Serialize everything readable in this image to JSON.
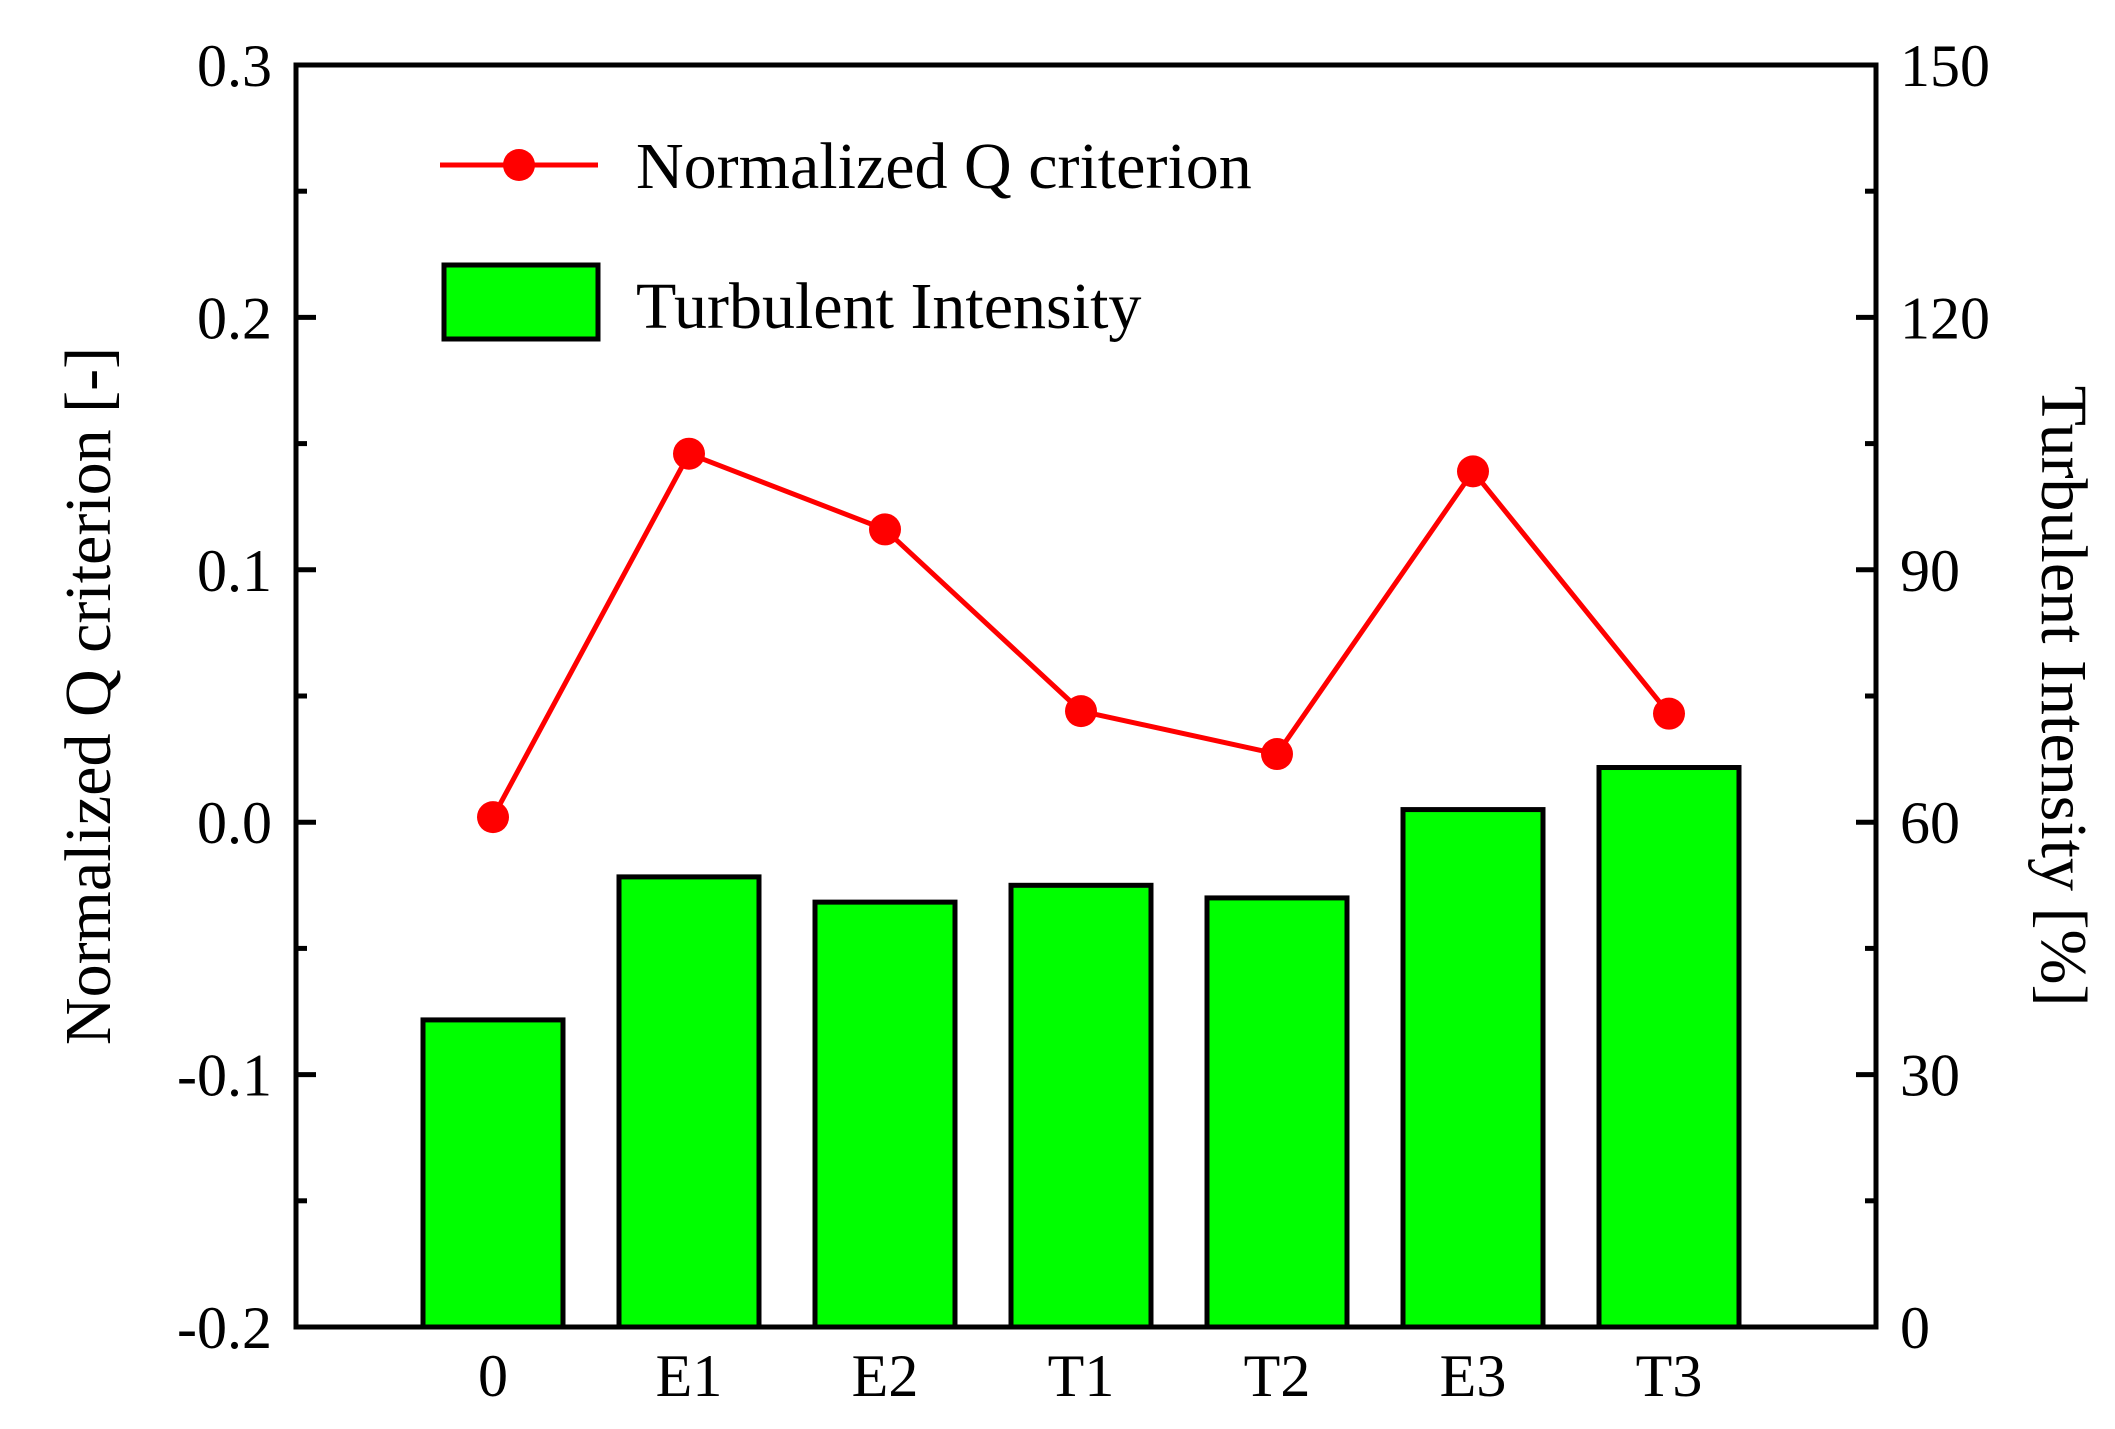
{
  "chart_data": {
    "type": "bar",
    "categories": [
      "0",
      "E1",
      "E2",
      "T1",
      "T2",
      "E3",
      "T3"
    ],
    "series": [
      {
        "name": "Turbulent Intensity",
        "type": "bar",
        "axis": "right",
        "values": [
          36.5,
          53.5,
          50.5,
          52.5,
          51,
          61.5,
          66.5
        ]
      },
      {
        "name": "Normalized Q criterion",
        "type": "line",
        "axis": "left",
        "values": [
          0.002,
          0.146,
          0.116,
          0.044,
          0.027,
          0.139,
          0.043
        ]
      }
    ],
    "ylabel": "Normalized Q criterion [-]",
    "y2label": "Turbulent Intensity [%]",
    "xlabel": "",
    "ylim": [
      -0.2,
      0.3
    ],
    "y2lim": [
      0,
      150
    ],
    "yticks": [
      "-0.2",
      "-0.1",
      "0.0",
      "0.1",
      "0.2",
      "0.3"
    ],
    "y2ticks": [
      "0",
      "30",
      "60",
      "90",
      "120",
      "150"
    ],
    "legend_position": "top-left",
    "grid": false,
    "colors": {
      "bar_fill": "#00ff00",
      "bar_stroke": "#000000",
      "line": "#ff0000",
      "axis": "#000000"
    }
  }
}
